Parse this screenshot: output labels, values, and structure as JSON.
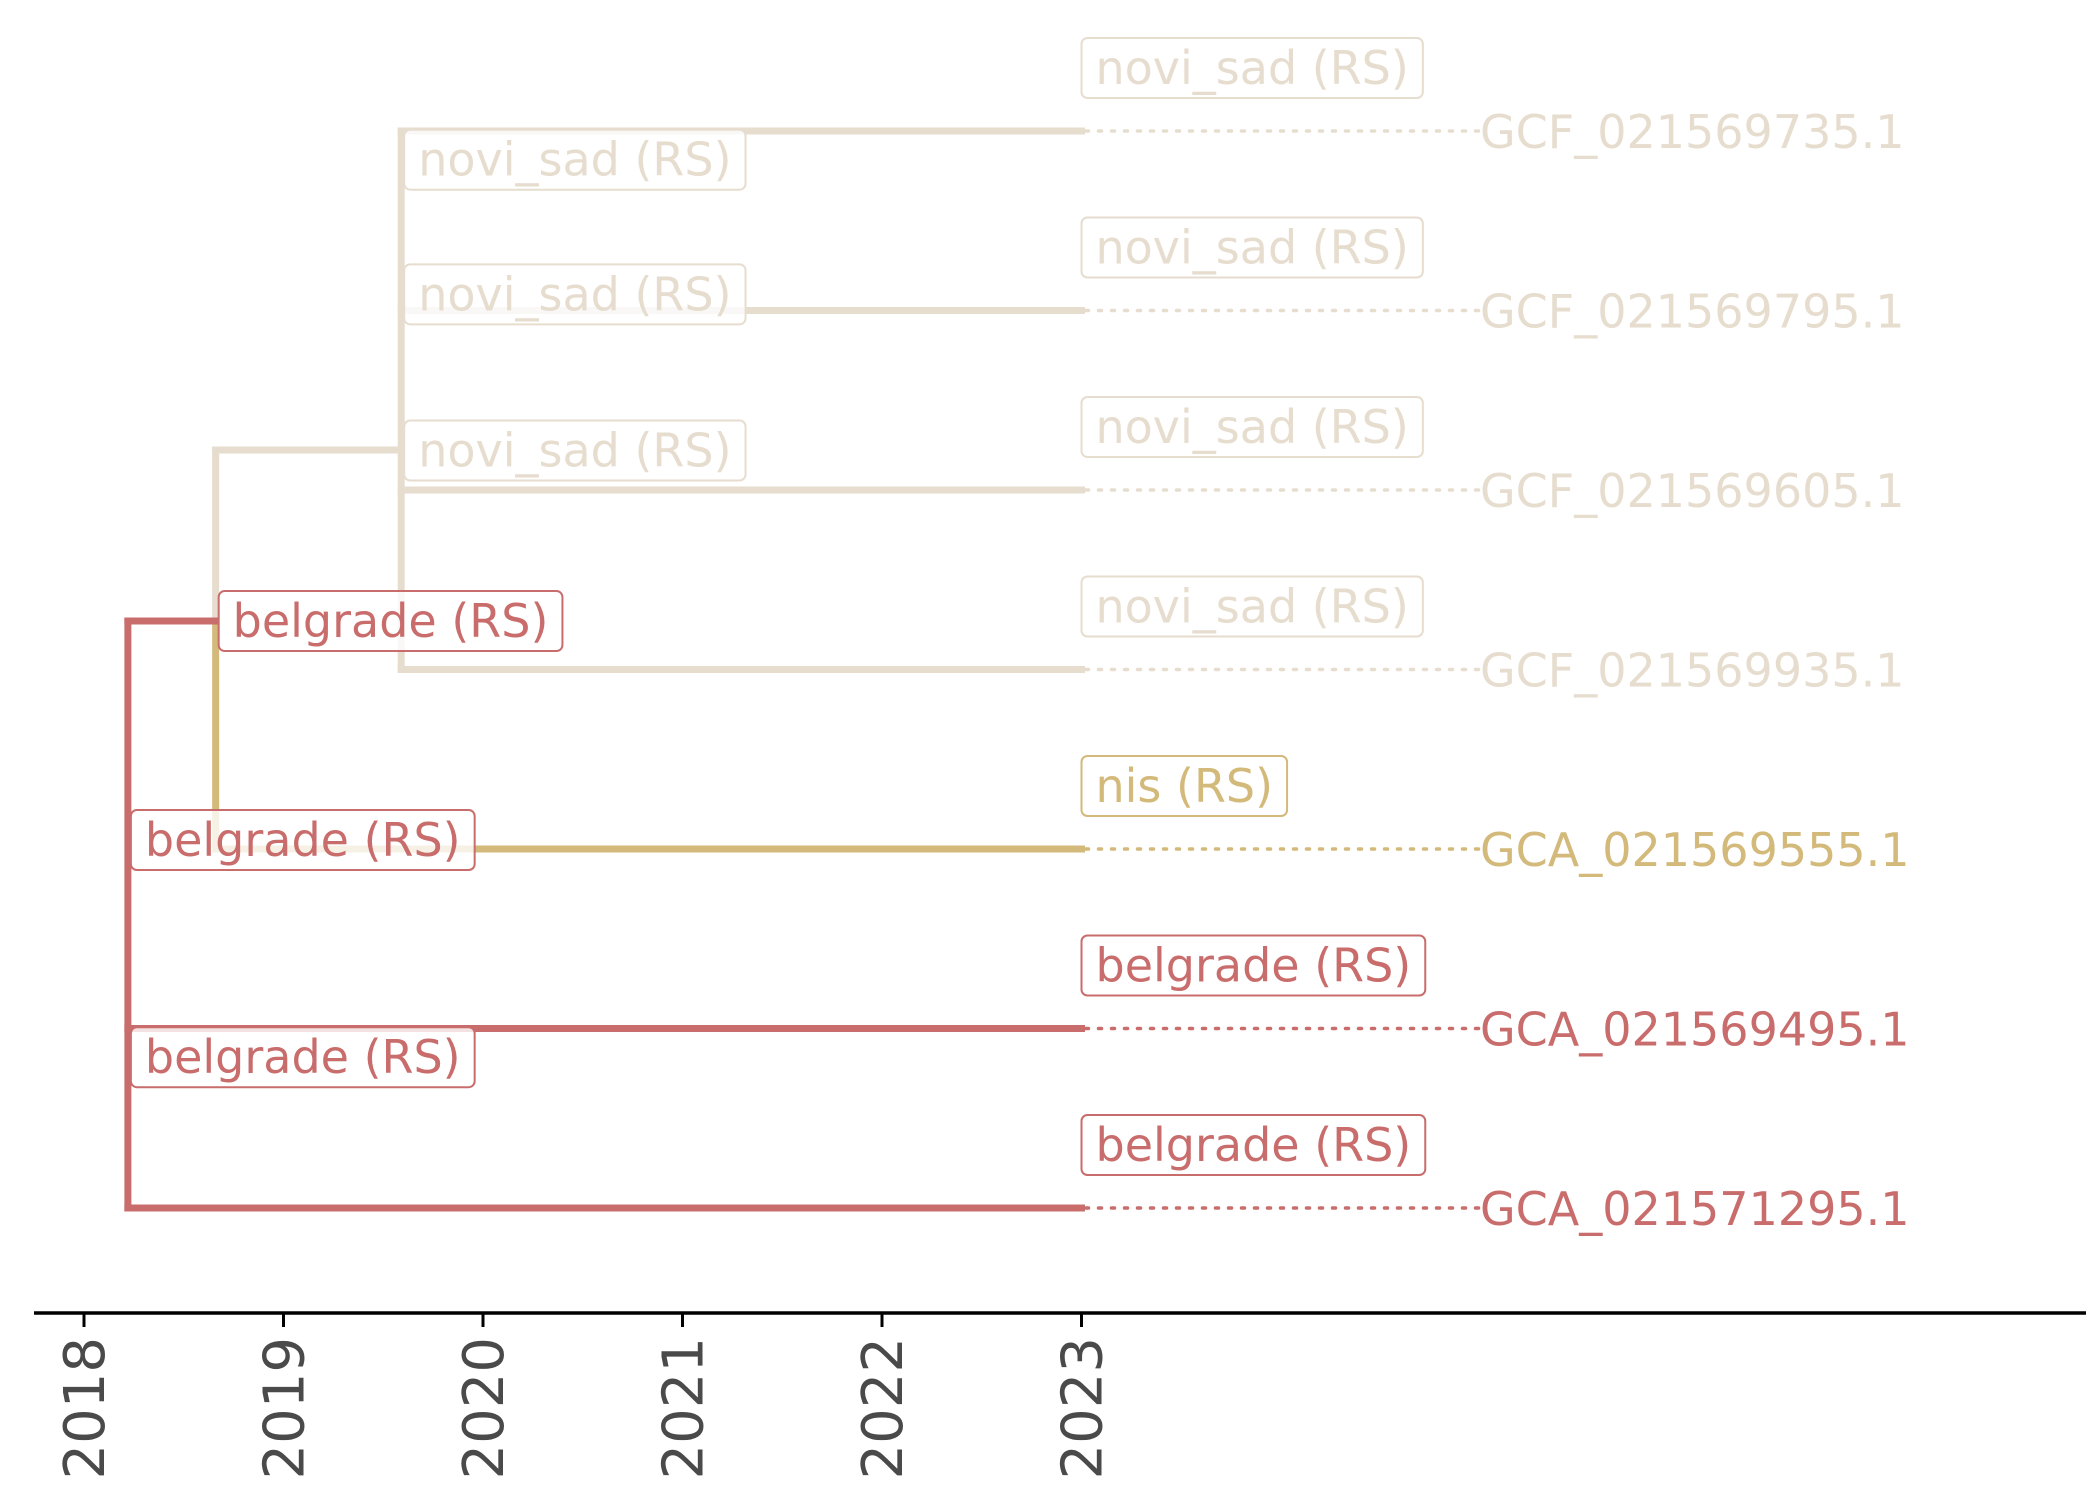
{
  "colors": {
    "novi_sad": "#e6ddcf",
    "nis": "#d3b97a",
    "belgrade": "#c96c6c",
    "axis": "#000000",
    "tick_text": "#4a4a4a"
  },
  "chart_data": {
    "type": "phylogenetic-tree",
    "x_axis": {
      "ticks": [
        "2018",
        "2019",
        "2020",
        "2021",
        "2022",
        "2023"
      ],
      "range": [
        2017.77,
        2028.3
      ]
    },
    "tips": [
      {
        "id": "GCF_021569735.1",
        "date": 2023.0,
        "row": 0,
        "location": "novi_sad (RS)",
        "group": "novi_sad"
      },
      {
        "id": "GCF_021569795.1",
        "date": 2023.0,
        "row": 1,
        "location": "novi_sad (RS)",
        "group": "novi_sad"
      },
      {
        "id": "GCF_021569605.1",
        "date": 2023.0,
        "row": 2,
        "location": "novi_sad (RS)",
        "group": "novi_sad"
      },
      {
        "id": "GCF_021569935.1",
        "date": 2023.0,
        "row": 3,
        "location": "novi_sad (RS)",
        "group": "novi_sad"
      },
      {
        "id": "GCA_021569555.1",
        "date": 2023.0,
        "row": 4,
        "location": "nis (RS)",
        "group": "nis"
      },
      {
        "id": "GCA_021569495.1",
        "date": 2023.0,
        "row": 5,
        "location": "belgrade (RS)",
        "group": "belgrade"
      },
      {
        "id": "GCA_021571295.1",
        "date": 2023.0,
        "row": 6,
        "location": "belgrade (RS)",
        "group": "belgrade"
      }
    ],
    "internal_nodes": [
      {
        "id": "n_root",
        "date": 2018.22,
        "location": "belgrade (RS)",
        "group": "belgrade"
      },
      {
        "id": "n_belgrade_sub",
        "date": 2018.22,
        "location": "belgrade (RS)",
        "group": "belgrade"
      },
      {
        "id": "n_belgrade_mid",
        "date": 2018.66,
        "location": "belgrade (RS)",
        "group": "belgrade"
      },
      {
        "id": "n_nis",
        "date": 2018.66,
        "location": "belgrade (RS)",
        "group": "nis"
      },
      {
        "id": "n_novi_root",
        "date": 2019.59,
        "location": "novi_sad (RS)",
        "group": "novi_sad"
      },
      {
        "id": "n_novi_a",
        "date": 2019.59,
        "location": "novi_sad (RS)",
        "group": "novi_sad"
      },
      {
        "id": "n_novi_b",
        "date": 2019.59,
        "location": "novi_sad (RS)",
        "group": "novi_sad"
      }
    ],
    "tip_labels": [
      {
        "text": "novi_sad (RS)",
        "row": 0,
        "group": "novi_sad"
      },
      {
        "text": "novi_sad (RS)",
        "row": 1,
        "group": "novi_sad"
      },
      {
        "text": "novi_sad (RS)",
        "row": 2,
        "group": "novi_sad"
      },
      {
        "text": "novi_sad (RS)",
        "row": 3,
        "group": "novi_sad"
      },
      {
        "text": "nis (RS)",
        "row": 4,
        "group": "nis"
      },
      {
        "text": "belgrade (RS)",
        "row": 5,
        "group": "belgrade"
      },
      {
        "text": "belgrade (RS)",
        "row": 6,
        "group": "belgrade"
      }
    ],
    "node_labels": [
      {
        "text": "novi_sad (RS)",
        "date": 2019.59,
        "row": 0.16,
        "group": "novi_sad"
      },
      {
        "text": "novi_sad (RS)",
        "date": 2019.59,
        "row": 0.91,
        "group": "novi_sad"
      },
      {
        "text": "novi_sad (RS)",
        "date": 2019.59,
        "row": 1.78,
        "group": "novi_sad"
      },
      {
        "text": "belgrade (RS)",
        "date": 2018.66,
        "row": 2.73,
        "group": "belgrade"
      },
      {
        "text": "belgrade (RS)",
        "date": 2018.22,
        "row": 3.95,
        "group": "belgrade"
      },
      {
        "text": "belgrade (RS)",
        "date": 2018.22,
        "row": 5.16,
        "group": "belgrade"
      }
    ]
  }
}
